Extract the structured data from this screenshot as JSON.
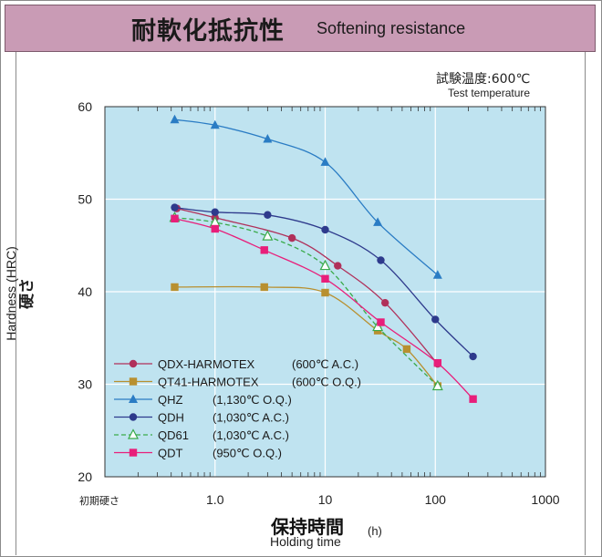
{
  "header": {
    "title_ja": "耐軟化抵抗性",
    "title_en": "Softening resistance"
  },
  "annotation": {
    "temp_ja": "試験温度:600℃",
    "temp_en": "Test temperature"
  },
  "colors": {
    "plot_background": "#bfe3f0",
    "grid": "#ffffff",
    "title_bar": "#c99bb5"
  },
  "chart_data": {
    "type": "line",
    "xscale": "log",
    "xlim": [
      0.1,
      1000
    ],
    "ylim": [
      20,
      60
    ],
    "grid": true,
    "legend_position": "bottom-left",
    "xlabel_ja": "保持時間",
    "xlabel_en": "Holding time",
    "xunit": "(h)",
    "ylabel_en": "Hardness (HRC)",
    "ylabel_ja": "硬さ",
    "x_ticks": [
      {
        "value": 0.1,
        "label": "初期硬さ"
      },
      {
        "value": 1,
        "label": "1.0"
      },
      {
        "value": 10,
        "label": "10"
      },
      {
        "value": 100,
        "label": "100"
      },
      {
        "value": 1000,
        "label": "1000"
      }
    ],
    "y_ticks": [
      20,
      30,
      40,
      50,
      60
    ],
    "series": [
      {
        "name": "QDX-HARMOTEX",
        "condition": "(600℃ A.C.)",
        "color": "#b0305a",
        "marker": "circle",
        "dashed": false,
        "points": [
          [
            0.45,
            49.0
          ],
          [
            1.0,
            48.0
          ],
          [
            5.0,
            45.8
          ],
          [
            13.0,
            42.8
          ],
          [
            35.0,
            38.8
          ],
          [
            105.0,
            32.2
          ]
        ]
      },
      {
        "name": "QT41-HARMOTEX",
        "condition": "(600℃ O.Q.)",
        "color": "#b89030",
        "marker": "square",
        "dashed": false,
        "points": [
          [
            0.43,
            40.5
          ],
          [
            2.8,
            40.5
          ],
          [
            10.0,
            39.9
          ],
          [
            30.0,
            35.8
          ],
          [
            55.0,
            33.8
          ],
          [
            105.0,
            29.8
          ]
        ]
      },
      {
        "name": "QHZ",
        "condition": "(1,130℃ O.Q.)",
        "color": "#2a7cc4",
        "marker": "triangle",
        "dashed": false,
        "points": [
          [
            0.43,
            58.6
          ],
          [
            1.0,
            58.0
          ],
          [
            3.0,
            56.5
          ],
          [
            10.0,
            54.0
          ],
          [
            30.0,
            47.5
          ],
          [
            105.0,
            41.8
          ]
        ]
      },
      {
        "name": "QDH",
        "condition": "(1,030℃ A.C.)",
        "color": "#2e3a8c",
        "marker": "circle",
        "dashed": false,
        "points": [
          [
            0.43,
            49.1
          ],
          [
            1.0,
            48.6
          ],
          [
            3.0,
            48.3
          ],
          [
            10.0,
            46.7
          ],
          [
            32.0,
            43.4
          ],
          [
            100.0,
            37.0
          ],
          [
            220.0,
            33.0
          ]
        ]
      },
      {
        "name": "QD61",
        "condition": "(1,030℃ A.C.)",
        "color": "#3aaa4a",
        "marker": "triangle-open",
        "dashed": true,
        "points": [
          [
            0.43,
            48.0
          ],
          [
            1.0,
            47.5
          ],
          [
            3.0,
            46.0
          ],
          [
            10.0,
            42.8
          ],
          [
            30.0,
            36.2
          ],
          [
            105.0,
            29.8
          ]
        ]
      },
      {
        "name": "QDT",
        "condition": "(950℃ O.Q.)",
        "color": "#e81e7a",
        "marker": "square",
        "dashed": false,
        "points": [
          [
            0.43,
            47.9
          ],
          [
            1.0,
            46.8
          ],
          [
            2.8,
            44.5
          ],
          [
            10.0,
            41.4
          ],
          [
            32.0,
            36.7
          ],
          [
            105.0,
            32.3
          ],
          [
            220.0,
            28.4
          ]
        ]
      }
    ]
  }
}
